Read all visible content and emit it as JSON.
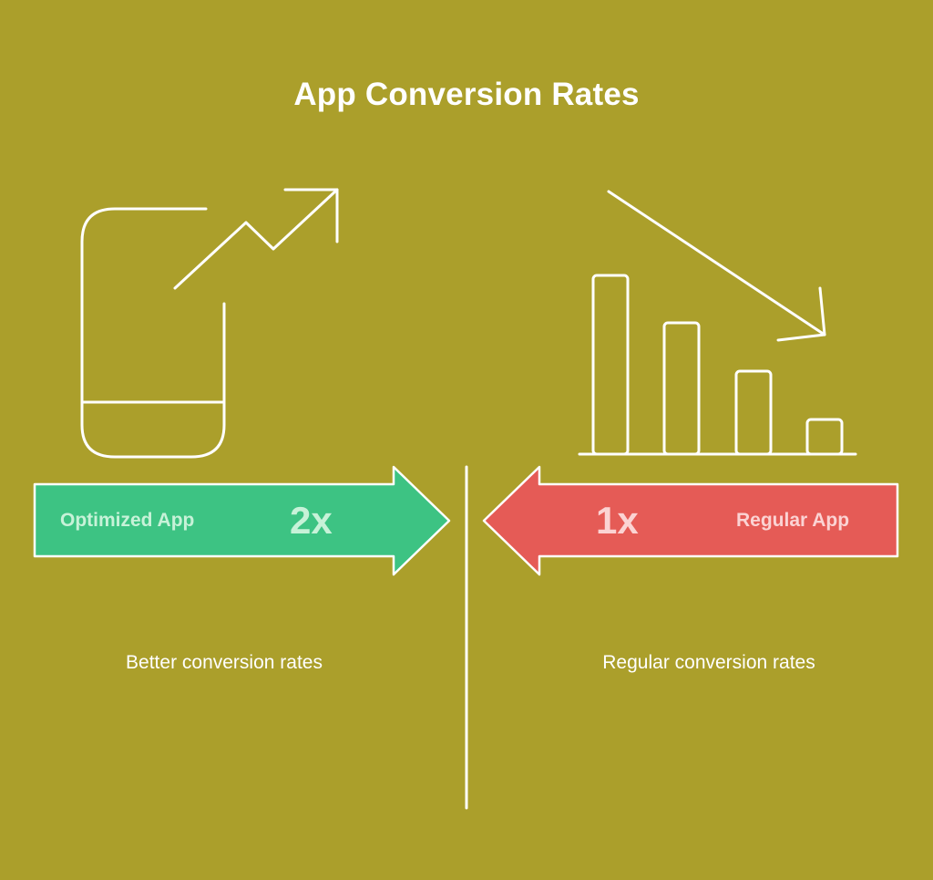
{
  "title": "App Conversion Rates",
  "colors": {
    "background": "#ab9f2b",
    "optimized": "#3dc383",
    "regular": "#e55b56",
    "line": "#ffffff"
  },
  "left": {
    "label": "Optimized App",
    "multiplier": "2x",
    "description": "Better conversion rates",
    "icons": [
      "phone-icon",
      "trend-up-arrow-icon"
    ]
  },
  "right": {
    "label": "Regular App",
    "multiplier": "1x",
    "description": "Regular conversion rates",
    "icons": [
      "bar-chart-icon",
      "trend-down-arrow-icon"
    ]
  }
}
